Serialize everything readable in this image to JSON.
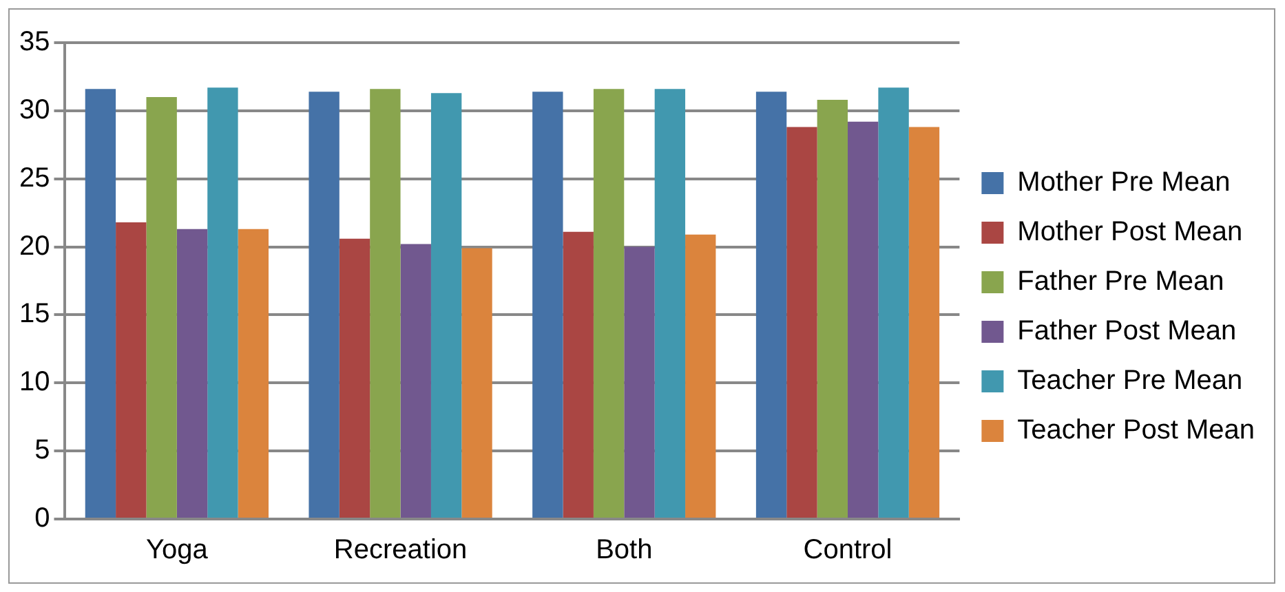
{
  "chart_data": {
    "type": "bar",
    "categories": [
      "Yoga",
      "Recreation",
      "Both",
      "Control"
    ],
    "series": [
      {
        "name": "Mother Pre Mean",
        "color": "#4572a7",
        "values": [
          31.6,
          31.4,
          31.4,
          31.4
        ]
      },
      {
        "name": "Mother Post Mean",
        "color": "#aa4643",
        "values": [
          21.8,
          20.6,
          21.1,
          28.8
        ]
      },
      {
        "name": "Father Pre Mean",
        "color": "#89a54e",
        "values": [
          31.0,
          31.6,
          31.6,
          30.8
        ]
      },
      {
        "name": "Father Post Mean",
        "color": "#71588f",
        "values": [
          21.3,
          20.2,
          20.0,
          29.2
        ]
      },
      {
        "name": "Teacher Pre Mean",
        "color": "#4198af",
        "values": [
          31.7,
          31.3,
          31.6,
          31.7
        ]
      },
      {
        "name": "Teacher Post Mean",
        "color": "#db843d",
        "values": [
          21.3,
          19.9,
          20.9,
          28.8
        ]
      }
    ],
    "ylim": [
      0,
      35
    ],
    "yticks": [
      0,
      5,
      10,
      15,
      20,
      25,
      30,
      35
    ],
    "grid": "y",
    "legend": "right"
  }
}
